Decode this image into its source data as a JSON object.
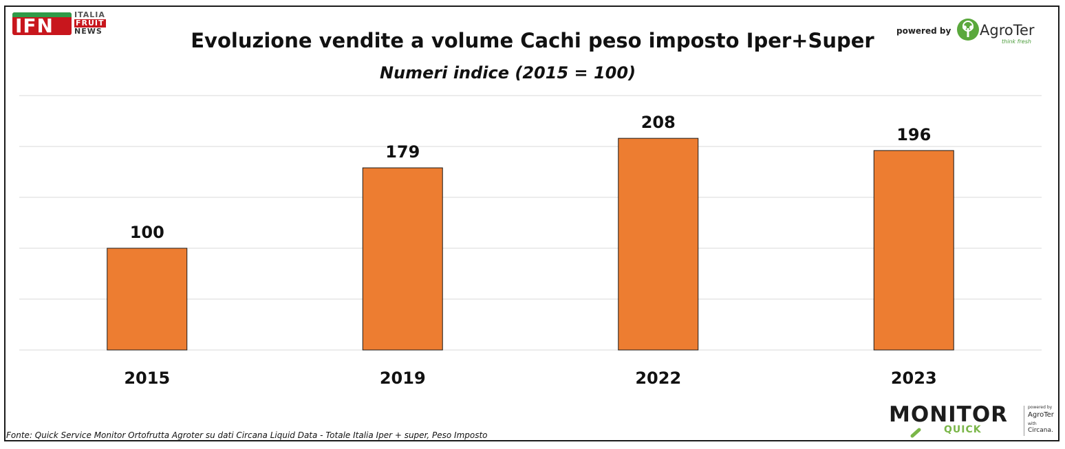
{
  "branding": {
    "ifn_logo": {
      "mark": "IFN",
      "line1": "ITALIA",
      "line2": "FRUIT",
      "line3": "NEWS"
    },
    "powered_by": "powered by",
    "agroter": {
      "word": "AgroTer",
      "tagline": "think fresh"
    },
    "monitor": {
      "word": "MONITOR",
      "sub": "QUICK",
      "powered_by": "powered by",
      "brand": "AgroTer",
      "with": "with",
      "partner": "Circana."
    }
  },
  "colors": {
    "bar": "#ED7D31",
    "bar_stroke": "#1a1a1a",
    "grid": "#d9d9d9",
    "text": "#111111"
  },
  "chart_data": {
    "type": "bar",
    "title": "Evoluzione vendite a volume Cachi peso imposto Iper+Super",
    "subtitle": "Numeri indice (2015 = 100)",
    "categories": [
      "2015",
      "2019",
      "2022",
      "2023"
    ],
    "values": [
      100,
      179,
      208,
      196
    ],
    "data_labels": [
      "100",
      "179",
      "208",
      "196"
    ],
    "ylim": [
      0,
      250
    ],
    "grid": true,
    "y_tick_labels_shown": false,
    "legend": "none"
  },
  "source": "Fonte: Quick Service Monitor Ortofrutta Agroter su dati Circana Liquid Data - Totale Italia Iper + super, Peso Imposto"
}
